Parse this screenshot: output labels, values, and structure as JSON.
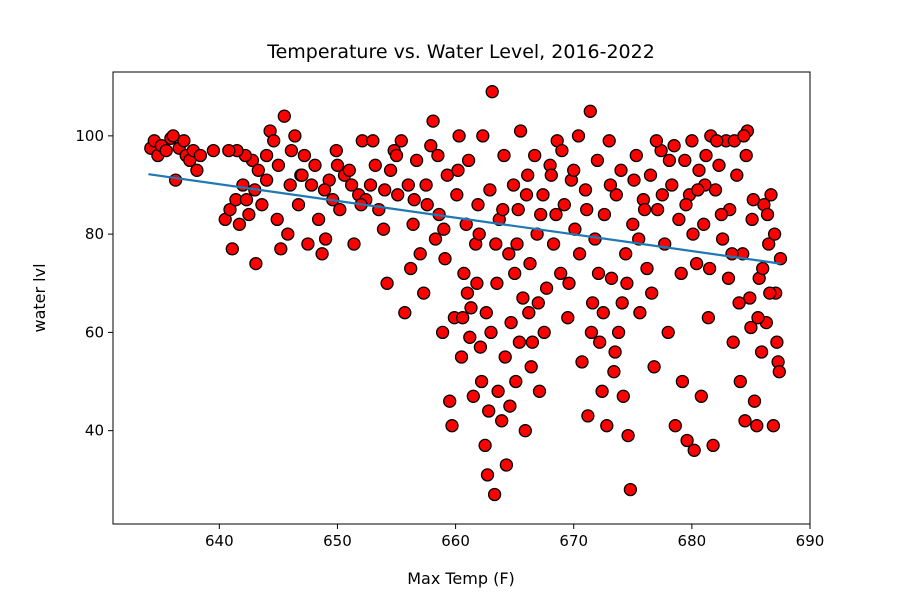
{
  "chart_data": {
    "type": "scatter",
    "title": "Temperature vs. Water Level, 2016-2022",
    "xlabel": "Max Temp (F)",
    "ylabel": "water lvl",
    "xlim": [
      631,
      690
    ],
    "ylim": [
      21,
      113
    ],
    "xticks": [
      640,
      650,
      660,
      670,
      680,
      690
    ],
    "yticks": [
      40,
      60,
      80,
      100
    ],
    "grid": false,
    "legend": "none",
    "marker_fill": "#ff0000",
    "marker_edge": "#000000",
    "trendline_color": "#1f77b4",
    "trendline": {
      "x": [
        634,
        687.5
      ],
      "y": [
        92.2,
        74.0
      ]
    },
    "points": [
      [
        634.2,
        97.5
      ],
      [
        634.5,
        99
      ],
      [
        634.8,
        96
      ],
      [
        635.1,
        98
      ],
      [
        635.5,
        97
      ],
      [
        635.9,
        99.5
      ],
      [
        636.1,
        100
      ],
      [
        636.3,
        91
      ],
      [
        636.6,
        97.5
      ],
      [
        637.0,
        99
      ],
      [
        637.2,
        96
      ],
      [
        637.5,
        95
      ],
      [
        637.8,
        97
      ],
      [
        638.1,
        93
      ],
      [
        638.4,
        96
      ],
      [
        639.5,
        97
      ],
      [
        640.5,
        83
      ],
      [
        640.9,
        85
      ],
      [
        641.1,
        77
      ],
      [
        641.4,
        87
      ],
      [
        641.7,
        82
      ],
      [
        642.0,
        90
      ],
      [
        642.3,
        87
      ],
      [
        642.5,
        84
      ],
      [
        642.8,
        95
      ],
      [
        643.1,
        74
      ],
      [
        643.3,
        93
      ],
      [
        643.6,
        86
      ],
      [
        644.0,
        91
      ],
      [
        644.3,
        101
      ],
      [
        644.6,
        99
      ],
      [
        644.9,
        83
      ],
      [
        645.2,
        77
      ],
      [
        645.5,
        104
      ],
      [
        645.8,
        80
      ],
      [
        646.1,
        97
      ],
      [
        646.4,
        100
      ],
      [
        646.7,
        86
      ],
      [
        646.9,
        92
      ],
      [
        647.2,
        96
      ],
      [
        647.5,
        78
      ],
      [
        647.8,
        90
      ],
      [
        648.1,
        94
      ],
      [
        648.4,
        83
      ],
      [
        648.7,
        76
      ],
      [
        649.0,
        79
      ],
      [
        649.3,
        91
      ],
      [
        649.6,
        87
      ],
      [
        649.9,
        97
      ],
      [
        650.2,
        85
      ],
      [
        650.6,
        92
      ],
      [
        651.0,
        93
      ],
      [
        651.4,
        78
      ],
      [
        651.8,
        88
      ],
      [
        652.1,
        99
      ],
      [
        652.4,
        87
      ],
      [
        652.8,
        90
      ],
      [
        653.2,
        94
      ],
      [
        653.5,
        85
      ],
      [
        653.9,
        81
      ],
      [
        654.2,
        70
      ],
      [
        654.5,
        93
      ],
      [
        654.8,
        97
      ],
      [
        655.1,
        88
      ],
      [
        655.4,
        99
      ],
      [
        655.7,
        64
      ],
      [
        656.0,
        90
      ],
      [
        656.2,
        73
      ],
      [
        656.4,
        82
      ],
      [
        656.7,
        95
      ],
      [
        657.0,
        76
      ],
      [
        657.3,
        68
      ],
      [
        657.6,
        86
      ],
      [
        657.9,
        98
      ],
      [
        658.1,
        103
      ],
      [
        658.3,
        79
      ],
      [
        658.6,
        84
      ],
      [
        658.9,
        60
      ],
      [
        659.1,
        75
      ],
      [
        659.3,
        92
      ],
      [
        659.5,
        46
      ],
      [
        659.7,
        41
      ],
      [
        659.9,
        63
      ],
      [
        660.1,
        88
      ],
      [
        660.3,
        100
      ],
      [
        660.5,
        55
      ],
      [
        660.7,
        72
      ],
      [
        660.9,
        82
      ],
      [
        661.1,
        95
      ],
      [
        661.3,
        65
      ],
      [
        661.5,
        47
      ],
      [
        661.7,
        78
      ],
      [
        661.9,
        86
      ],
      [
        662.1,
        57
      ],
      [
        662.3,
        100
      ],
      [
        662.5,
        37
      ],
      [
        662.7,
        31
      ],
      [
        662.9,
        89
      ],
      [
        663.1,
        109
      ],
      [
        663.3,
        27
      ],
      [
        663.5,
        70
      ],
      [
        663.7,
        83
      ],
      [
        663.9,
        42
      ],
      [
        664.1,
        96
      ],
      [
        664.3,
        33
      ],
      [
        664.5,
        76
      ],
      [
        664.7,
        62
      ],
      [
        664.9,
        90
      ],
      [
        665.1,
        50
      ],
      [
        665.3,
        85
      ],
      [
        665.5,
        101
      ],
      [
        665.7,
        67
      ],
      [
        665.9,
        40
      ],
      [
        666.1,
        92
      ],
      [
        666.3,
        74
      ],
      [
        666.5,
        58
      ],
      [
        666.7,
        96
      ],
      [
        666.9,
        80
      ],
      [
        667.1,
        48
      ],
      [
        667.4,
        88
      ],
      [
        667.7,
        69
      ],
      [
        668.0,
        94
      ],
      [
        668.3,
        78
      ],
      [
        668.6,
        99
      ],
      [
        668.9,
        72
      ],
      [
        669.2,
        86
      ],
      [
        669.5,
        63
      ],
      [
        669.8,
        91
      ],
      [
        670.1,
        81
      ],
      [
        670.4,
        100
      ],
      [
        670.7,
        54
      ],
      [
        671.0,
        89
      ],
      [
        671.2,
        43
      ],
      [
        671.4,
        105
      ],
      [
        671.6,
        66
      ],
      [
        671.8,
        79
      ],
      [
        672.0,
        95
      ],
      [
        672.2,
        58
      ],
      [
        672.4,
        48
      ],
      [
        672.6,
        84
      ],
      [
        672.8,
        41
      ],
      [
        673.0,
        99
      ],
      [
        673.2,
        71
      ],
      [
        673.4,
        52
      ],
      [
        673.6,
        88
      ],
      [
        673.8,
        60
      ],
      [
        674.0,
        93
      ],
      [
        674.2,
        47
      ],
      [
        674.4,
        76
      ],
      [
        674.6,
        39
      ],
      [
        674.8,
        28
      ],
      [
        675.0,
        82
      ],
      [
        675.3,
        96
      ],
      [
        675.6,
        64
      ],
      [
        675.9,
        87
      ],
      [
        676.2,
        73
      ],
      [
        676.5,
        92
      ],
      [
        676.8,
        53
      ],
      [
        677.1,
        85
      ],
      [
        677.4,
        97
      ],
      [
        677.7,
        78
      ],
      [
        678.0,
        60
      ],
      [
        678.3,
        90
      ],
      [
        678.6,
        41
      ],
      [
        678.9,
        83
      ],
      [
        679.2,
        50
      ],
      [
        679.4,
        95
      ],
      [
        679.6,
        38
      ],
      [
        679.8,
        88
      ],
      [
        680.0,
        99
      ],
      [
        680.2,
        36
      ],
      [
        680.4,
        74
      ],
      [
        680.6,
        93
      ],
      [
        680.8,
        47
      ],
      [
        681.0,
        82
      ],
      [
        681.2,
        96
      ],
      [
        681.4,
        63
      ],
      [
        681.6,
        100
      ],
      [
        681.8,
        37
      ],
      [
        682.0,
        89
      ],
      [
        682.3,
        94
      ],
      [
        682.6,
        79
      ],
      [
        682.9,
        99
      ],
      [
        683.2,
        85
      ],
      [
        683.5,
        58
      ],
      [
        683.8,
        92
      ],
      [
        684.1,
        50
      ],
      [
        684.3,
        76
      ],
      [
        684.5,
        42
      ],
      [
        684.7,
        101
      ],
      [
        684.9,
        67
      ],
      [
        685.1,
        83
      ],
      [
        685.3,
        46
      ],
      [
        685.5,
        41
      ],
      [
        685.7,
        71
      ],
      [
        685.9,
        56
      ],
      [
        686.1,
        86
      ],
      [
        686.3,
        62
      ],
      [
        686.5,
        78
      ],
      [
        686.7,
        88
      ],
      [
        686.9,
        41
      ],
      [
        687.1,
        68
      ],
      [
        687.3,
        54
      ],
      [
        687.5,
        75
      ],
      [
        660.2,
        93
      ],
      [
        661.0,
        68
      ],
      [
        662.0,
        80
      ],
      [
        663.0,
        60
      ],
      [
        664.0,
        85
      ],
      [
        665.0,
        72
      ],
      [
        666.0,
        88
      ],
      [
        667.0,
        66
      ],
      [
        658.5,
        96
      ],
      [
        659.0,
        81
      ],
      [
        657.5,
        90
      ],
      [
        656.5,
        87
      ],
      [
        655.0,
        96
      ],
      [
        654.0,
        89
      ],
      [
        653.0,
        99
      ],
      [
        652.0,
        86
      ],
      [
        651.2,
        90
      ],
      [
        650.0,
        94
      ],
      [
        648.9,
        89
      ],
      [
        647.0,
        92
      ],
      [
        646.0,
        90
      ],
      [
        645.0,
        94
      ],
      [
        644.0,
        96
      ],
      [
        643.0,
        89
      ],
      [
        642.2,
        96
      ],
      [
        641.5,
        97
      ],
      [
        640.8,
        97
      ],
      [
        661.8,
        70
      ],
      [
        662.6,
        64
      ],
      [
        663.4,
        78
      ],
      [
        664.2,
        55
      ],
      [
        665.2,
        78
      ],
      [
        666.2,
        64
      ],
      [
        667.2,
        84
      ],
      [
        668.1,
        92
      ],
      [
        669.0,
        97
      ],
      [
        670.0,
        93
      ],
      [
        671.1,
        85
      ],
      [
        672.1,
        72
      ],
      [
        673.1,
        90
      ],
      [
        674.1,
        66
      ],
      [
        675.1,
        91
      ],
      [
        676.0,
        85
      ],
      [
        677.0,
        99
      ],
      [
        678.1,
        95
      ],
      [
        679.1,
        72
      ],
      [
        680.1,
        80
      ],
      [
        681.1,
        90
      ],
      [
        682.1,
        99
      ],
      [
        683.1,
        71
      ],
      [
        684.0,
        66
      ],
      [
        685.0,
        61
      ],
      [
        686.0,
        73
      ],
      [
        687.0,
        80
      ],
      [
        683.6,
        99
      ],
      [
        684.4,
        100
      ],
      [
        685.2,
        87
      ],
      [
        686.4,
        84
      ],
      [
        687.2,
        58
      ],
      [
        660.6,
        63
      ],
      [
        661.2,
        59
      ],
      [
        662.2,
        50
      ],
      [
        662.8,
        44
      ],
      [
        663.6,
        48
      ],
      [
        664.6,
        45
      ],
      [
        665.4,
        58
      ],
      [
        666.4,
        53
      ],
      [
        667.5,
        60
      ],
      [
        668.5,
        84
      ],
      [
        669.6,
        70
      ],
      [
        670.5,
        76
      ],
      [
        671.5,
        60
      ],
      [
        672.5,
        64
      ],
      [
        673.5,
        56
      ],
      [
        674.5,
        70
      ],
      [
        675.5,
        79
      ],
      [
        676.6,
        68
      ],
      [
        677.5,
        88
      ],
      [
        678.5,
        98
      ],
      [
        679.5,
        86
      ],
      [
        680.5,
        89
      ],
      [
        681.5,
        73
      ],
      [
        682.5,
        84
      ],
      [
        683.4,
        76
      ],
      [
        684.6,
        96
      ],
      [
        685.6,
        63
      ],
      [
        686.6,
        68
      ],
      [
        687.4,
        52
      ]
    ]
  }
}
